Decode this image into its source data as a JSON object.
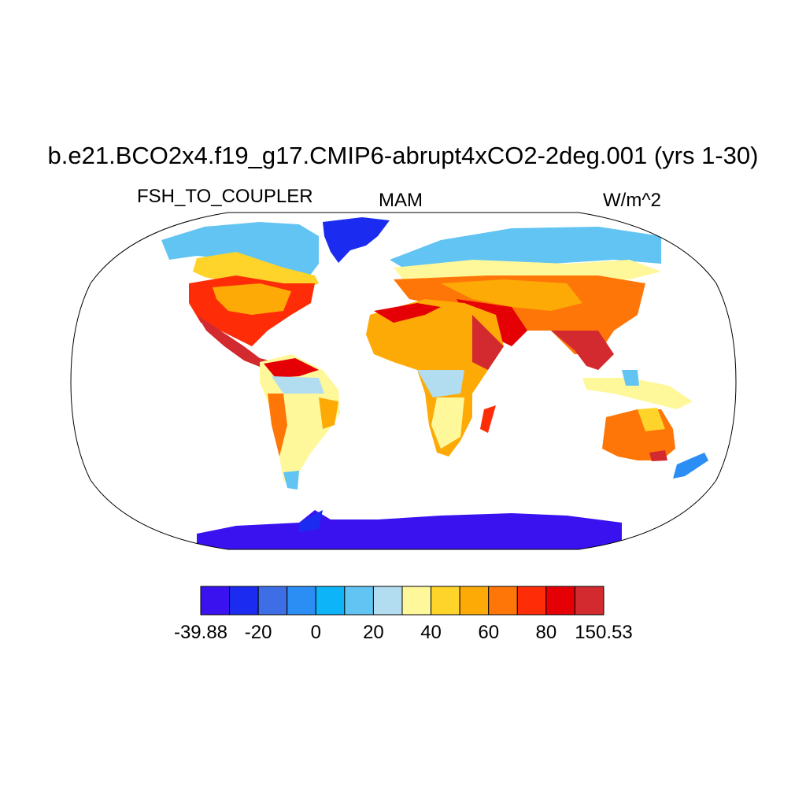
{
  "title": "b.e21.BCO2x4.f19_g17.CMIP6-abrupt4xCO2-2deg.001 (yrs 1-30)",
  "variable": "FSH_TO_COUPLER",
  "season": "MAM",
  "units": "W/m^2",
  "projection": "Robinson",
  "ocean_color": "#ffffff",
  "colorbar": {
    "colors": [
      "#3a12f0",
      "#1b2cf0",
      "#3d6ee6",
      "#2a8ef5",
      "#0db4f7",
      "#62c4f2",
      "#b2dcf0",
      "#fff89a",
      "#fed42b",
      "#fdaa06",
      "#fe7608",
      "#fe2d08",
      "#e50006",
      "#d22a2e"
    ],
    "labels": [
      "-39.88",
      "-20",
      "0",
      "20",
      "40",
      "60",
      "80",
      "150.53"
    ]
  }
}
